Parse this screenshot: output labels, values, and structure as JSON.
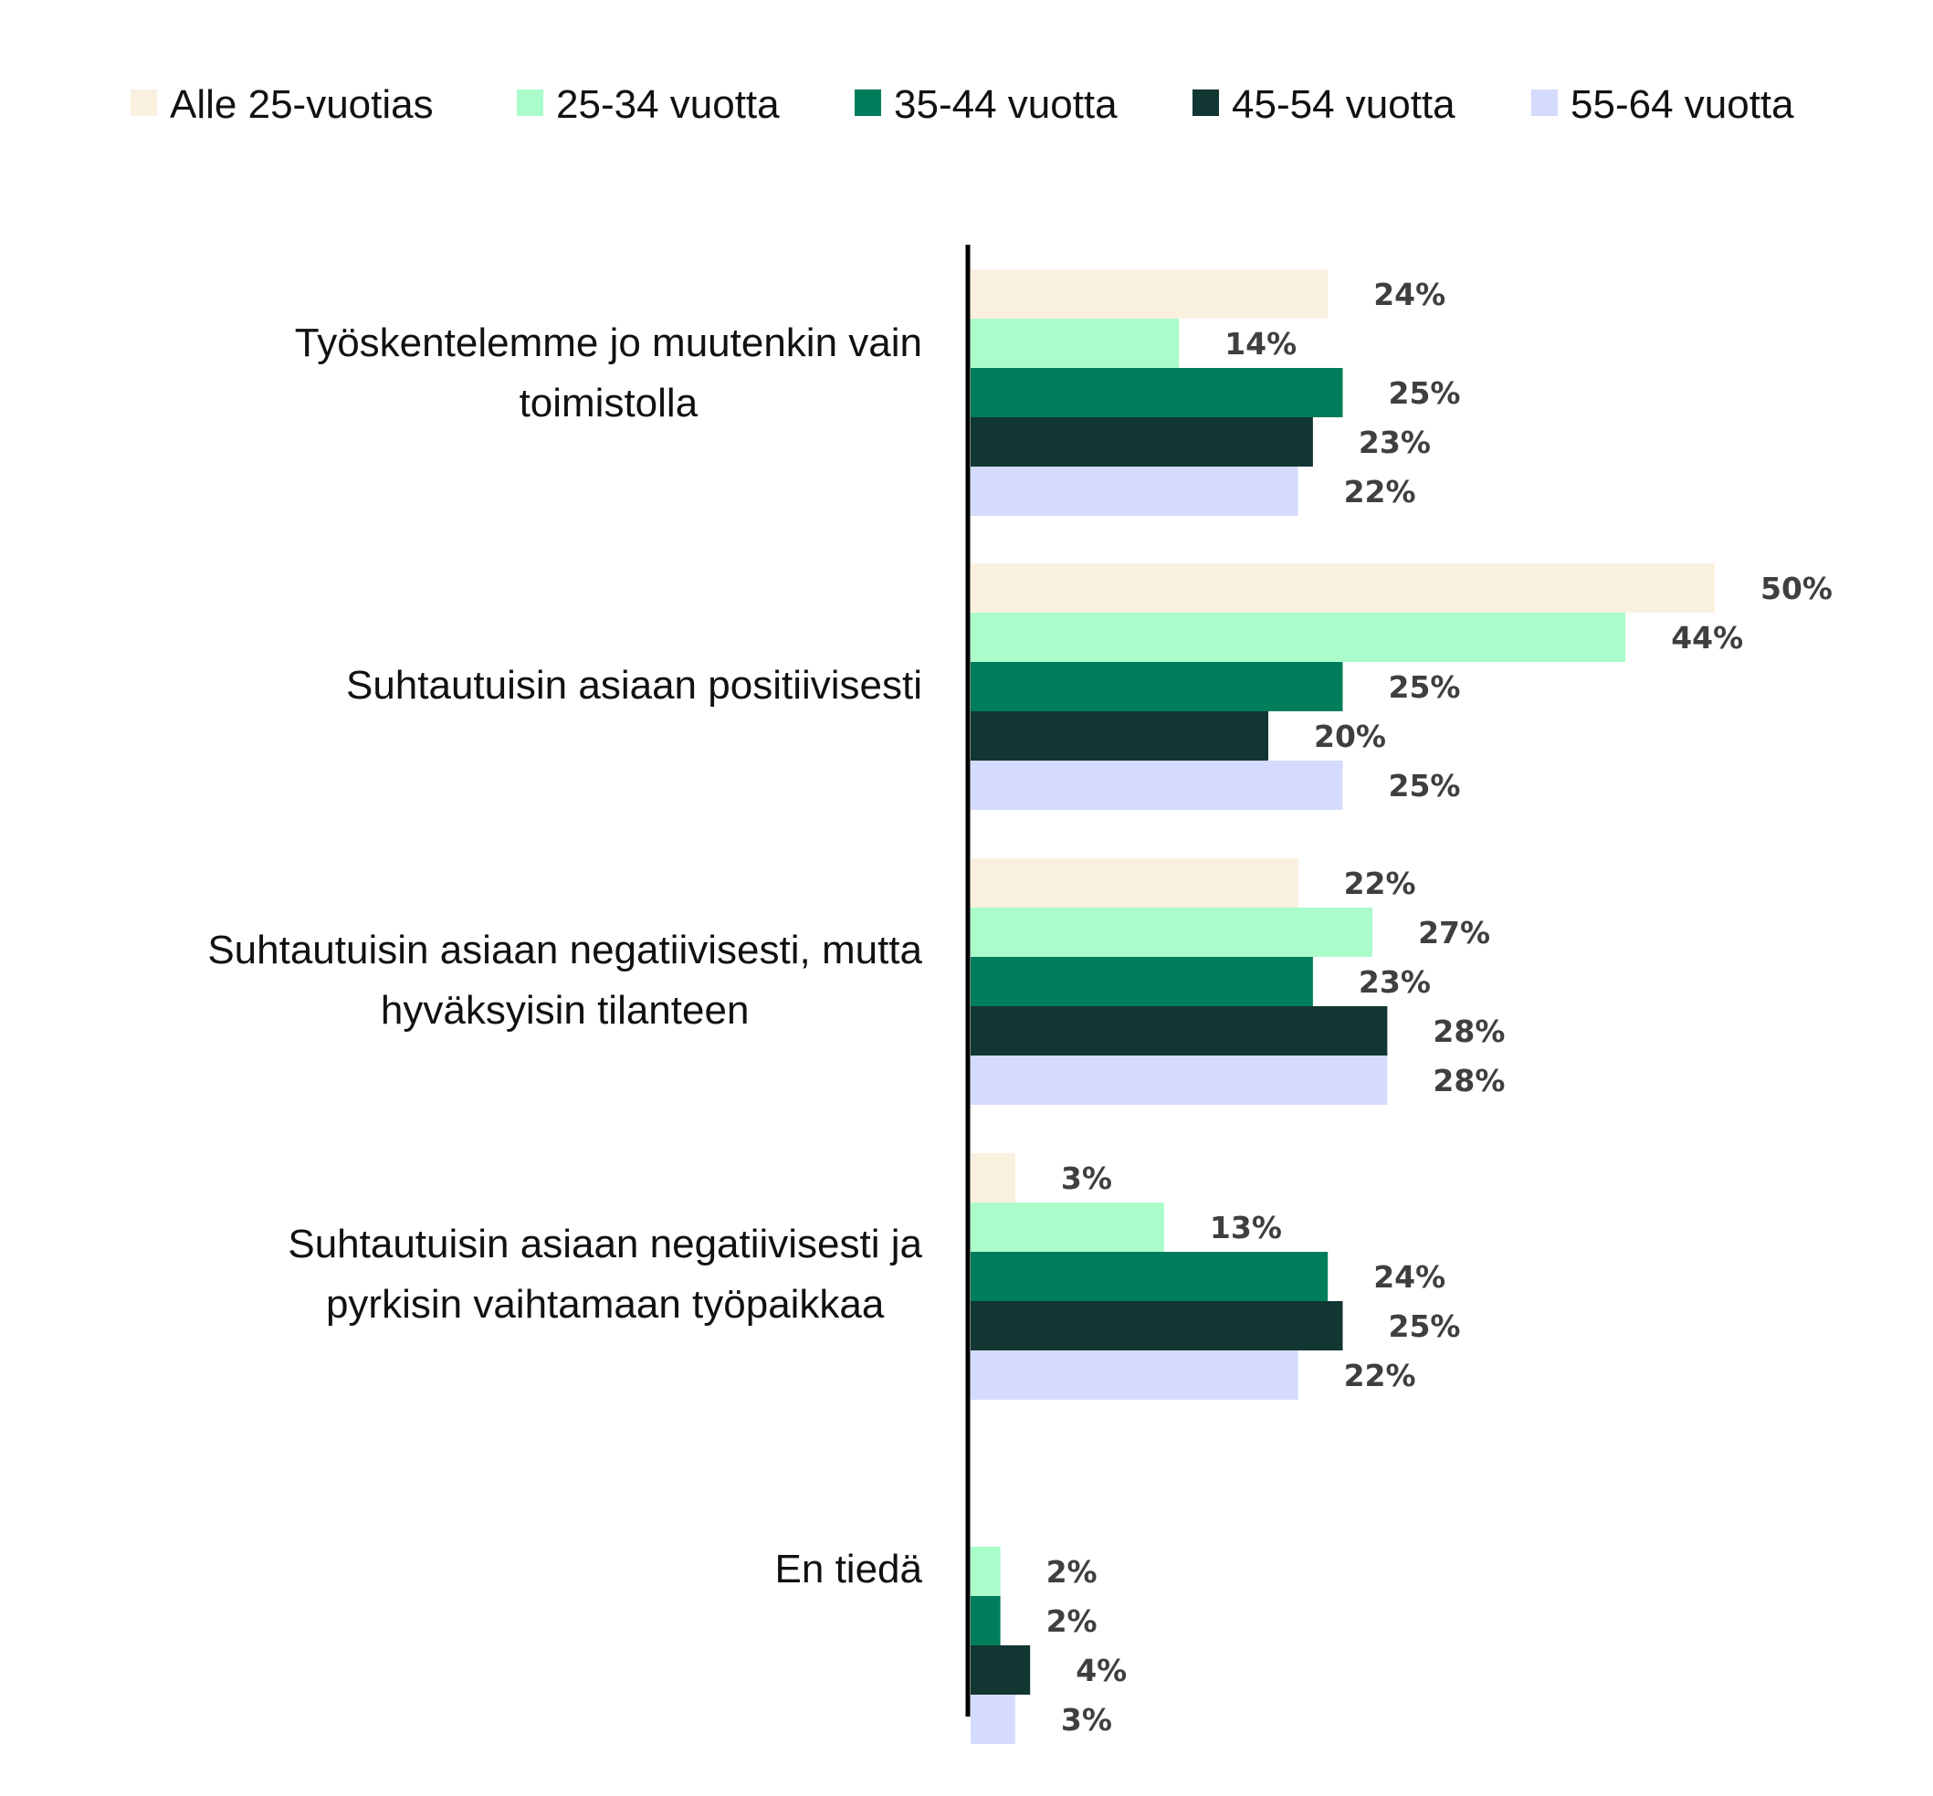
{
  "chart_data": {
    "type": "bar",
    "orientation": "horizontal",
    "categories": [
      [
        "Työskentelemme jo muutenkin vain",
        "toimistolla"
      ],
      [
        "Suhtautuisin asiaan positiivisesti"
      ],
      [
        "Suhtautuisin asiaan negatiivisesti, mutta",
        "hyväksyisin tilanteen"
      ],
      [
        "Suhtautuisin asiaan negatiivisesti ja",
        "pyrkisin vaihtamaan työpaikkaa"
      ],
      [
        "En tiedä"
      ]
    ],
    "series": [
      {
        "name": "Alle 25-vuotias",
        "color": "#FAF0DF",
        "values": [
          24,
          50,
          22,
          3,
          null
        ],
        "labels": [
          "24%",
          "50%",
          "22%",
          "3%",
          ""
        ]
      },
      {
        "name": "25-34 vuotta",
        "color": "#ABFCCB",
        "values": [
          14,
          44,
          27,
          13,
          2
        ],
        "labels": [
          "14%",
          "44%",
          "27%",
          "13%",
          "2%"
        ]
      },
      {
        "name": "35-44 vuotta",
        "color": "#007D5A",
        "values": [
          25,
          25,
          23,
          24,
          2
        ],
        "labels": [
          "25%",
          "25%",
          "23%",
          "24%",
          "2%"
        ]
      },
      {
        "name": "45-54 vuotta",
        "color": "#123631",
        "values": [
          23,
          20,
          28,
          25,
          4
        ],
        "labels": [
          "23%",
          "20%",
          "28%",
          "25%",
          "4%"
        ]
      },
      {
        "name": "55-64 vuotta",
        "color": "#D4DBFC",
        "values": [
          22,
          25,
          28,
          22,
          3
        ],
        "labels": [
          "22%",
          "25%",
          "28%",
          "22%",
          "3%"
        ]
      }
    ],
    "xlim": [
      0,
      50
    ],
    "grid": false,
    "legend_position": "top"
  }
}
